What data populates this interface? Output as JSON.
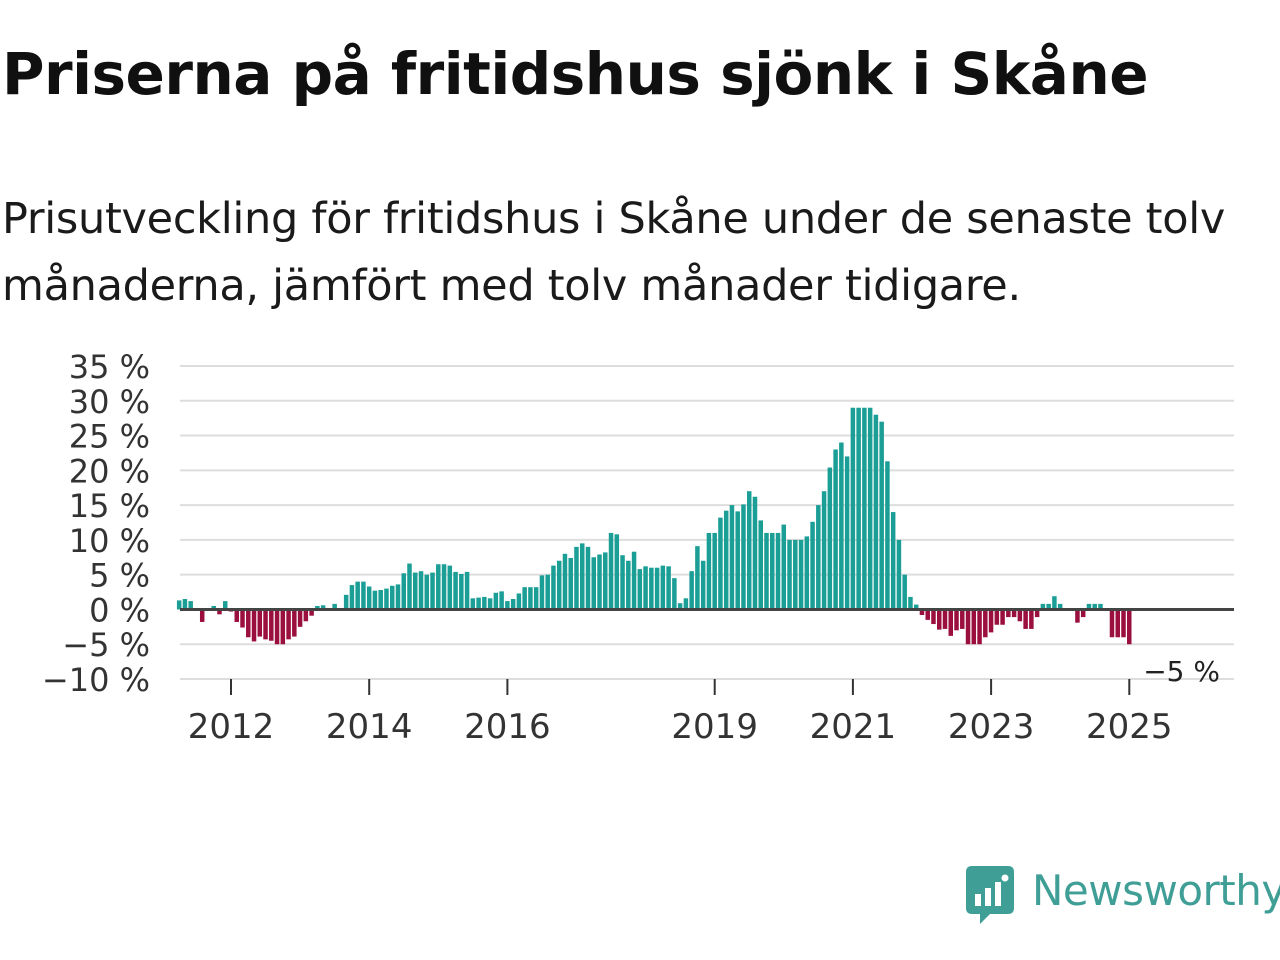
{
  "header": {
    "title": "Priserna på fritidshus sjönk i Skåne",
    "subtitle": "Prisutveckling för fritidshus i Skåne under de senaste tolv månaderna, jämfört med tolv månader tidigare."
  },
  "brand": {
    "name": "Newsworthy",
    "color": "#3f9e95"
  },
  "colors": {
    "positive": "#1a9e96",
    "negative": "#9b0f3f",
    "grid": "#dddddd",
    "zero_line": "#444444"
  },
  "chart_data": {
    "type": "bar",
    "title": "Priserna på fritidshus sjönk i Skåne",
    "xlabel": "",
    "ylabel": "",
    "ylim": [
      -10,
      35
    ],
    "yticks": [
      35,
      30,
      25,
      20,
      15,
      10,
      5,
      0,
      -5,
      -10
    ],
    "ytick_labels": [
      "35 %",
      "30 %",
      "25 %",
      "20 %",
      "15 %",
      "10 %",
      "5 %",
      "0 %",
      "−5 %",
      "−10 %"
    ],
    "x_start": 2011.25,
    "x_step": 0.08333,
    "xticks": [
      2012,
      2014,
      2016,
      2019,
      2021,
      2023,
      2025
    ],
    "xtick_labels": [
      "2012",
      "2014",
      "2016",
      "2019",
      "2021",
      "2023",
      "2025"
    ],
    "end_label": "−5 %",
    "grid": true,
    "series": [
      {
        "name": "Prisutveckling",
        "values": [
          1.3,
          1.5,
          1.2,
          0,
          -1.8,
          0,
          0.5,
          -0.7,
          1.2,
          -0.3,
          -1.8,
          -2.6,
          -4.0,
          -4.6,
          -3.9,
          -4.3,
          -4.5,
          -5.0,
          -5.0,
          -4.3,
          -3.9,
          -2.5,
          -1.7,
          -0.9,
          0.5,
          0.6,
          0.2,
          0.8,
          0,
          2.1,
          3.5,
          4.0,
          4.0,
          3.3,
          2.7,
          2.8,
          3.0,
          3.4,
          3.6,
          5.2,
          6.6,
          5.3,
          5.5,
          5.0,
          5.3,
          6.5,
          6.5,
          6.3,
          5.4,
          5.1,
          5.4,
          1.6,
          1.7,
          1.8,
          1.6,
          2.4,
          2.6,
          1.2,
          1.5,
          2.3,
          3.2,
          3.2,
          3.2,
          4.9,
          5.0,
          6.3,
          7.0,
          8.0,
          7.4,
          9.0,
          9.5,
          9.0,
          7.5,
          7.9,
          8.2,
          11.0,
          10.8,
          7.8,
          7.0,
          8.3,
          5.8,
          6.2,
          6.0,
          6.0,
          6.3,
          6.2,
          4.5,
          0.9,
          1.6,
          5.5,
          9.1,
          7.0,
          11.0,
          11.0,
          13.2,
          14.2,
          15.0,
          14.1,
          15.1,
          17.0,
          16.2,
          12.8,
          11.0,
          11.0,
          11.0,
          12.2,
          10.0,
          10.0,
          10.0,
          10.5,
          12.6,
          15.0,
          17.0,
          20.4,
          23.0,
          24.0,
          22.0,
          29.0,
          29.0,
          29.0,
          29.0,
          28.0,
          27.0,
          21.3,
          14.0,
          10.0,
          5.0,
          1.8,
          0.7,
          -0.8,
          -1.5,
          -2.1,
          -2.9,
          -2.8,
          -3.8,
          -3.0,
          -2.8,
          -5.0,
          -5.0,
          -5.0,
          -4.0,
          -3.3,
          -2.2,
          -2.2,
          -1.1,
          -1.1,
          -1.7,
          -2.8,
          -2.8,
          -1.1,
          0.8,
          0.8,
          1.9,
          0.8,
          0,
          0,
          -1.9,
          -1.1,
          0.8,
          0.8,
          0.8,
          -0.1,
          -4.0,
          -4.0,
          -4.0,
          -5.0
        ]
      }
    ]
  }
}
